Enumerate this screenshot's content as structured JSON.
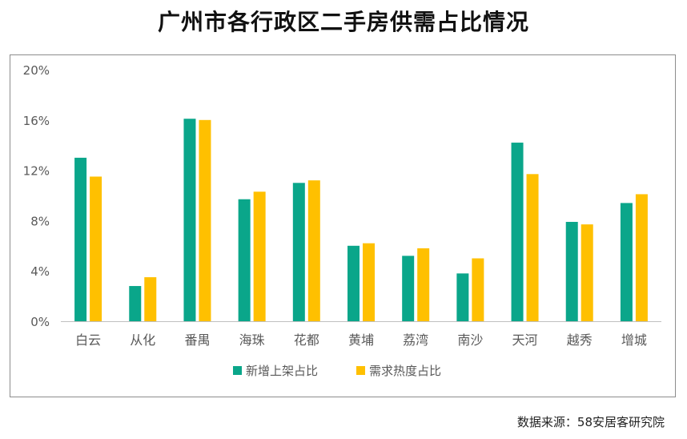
{
  "title": "广州市各行政区二手房供需占比情况",
  "source": "数据来源：58安居客研究院",
  "chart_data": {
    "type": "bar",
    "title": "广州市各行政区二手房供需占比情况",
    "categories": [
      "白云",
      "从化",
      "番禺",
      "海珠",
      "花都",
      "黄埔",
      "荔湾",
      "南沙",
      "天河",
      "越秀",
      "增城"
    ],
    "series": [
      {
        "name": "新增上架占比",
        "color": "#0aa68a",
        "values": [
          13.0,
          2.8,
          16.1,
          9.7,
          11.0,
          6.0,
          5.2,
          3.8,
          14.2,
          7.9,
          9.4
        ]
      },
      {
        "name": "需求热度占比",
        "color": "#ffc000",
        "values": [
          11.5,
          3.5,
          16.0,
          10.3,
          11.2,
          6.2,
          5.8,
          5.0,
          11.7,
          7.7,
          10.1
        ]
      }
    ],
    "yticks": [
      0,
      4,
      8,
      12,
      16,
      20
    ],
    "ytick_labels": [
      "0%",
      "4%",
      "8%",
      "12%",
      "16%",
      "20%"
    ],
    "ylim": [
      0,
      20
    ],
    "xlabel": "",
    "ylabel": "",
    "legend": "bottom-center",
    "grid": false
  }
}
